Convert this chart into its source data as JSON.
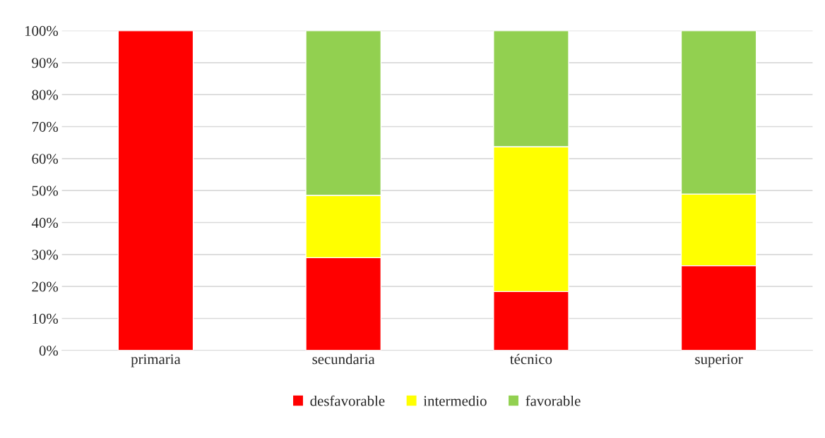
{
  "chart_data": {
    "type": "bar",
    "stacked": true,
    "categories": [
      "primaria",
      "secundaria",
      "técnico",
      "superior"
    ],
    "series": [
      {
        "name": "desfavorable",
        "color": "#ff0000",
        "values": [
          100,
          29.0,
          18.4,
          26.5
        ]
      },
      {
        "name": "intermedio",
        "color": "#ffff00",
        "values": [
          null,
          19.5,
          45.3,
          22.4
        ]
      },
      {
        "name": "favorable",
        "color": "#92d050",
        "values": [
          null,
          51.5,
          36.3,
          51.1
        ]
      }
    ],
    "ylim": [
      0,
      100
    ],
    "yticks": [
      {
        "value": 0,
        "label": "0%"
      },
      {
        "value": 10,
        "label": "10%"
      },
      {
        "value": 20,
        "label": "20%"
      },
      {
        "value": 30,
        "label": "30%"
      },
      {
        "value": 40,
        "label": "40%"
      },
      {
        "value": 50,
        "label": "50%"
      },
      {
        "value": 60,
        "label": "60%"
      },
      {
        "value": 70,
        "label": "70%"
      },
      {
        "value": 80,
        "label": "80%"
      },
      {
        "value": 90,
        "label": "90%"
      },
      {
        "value": 100,
        "label": "100%"
      }
    ],
    "grid": "y",
    "legend": "bottom"
  }
}
